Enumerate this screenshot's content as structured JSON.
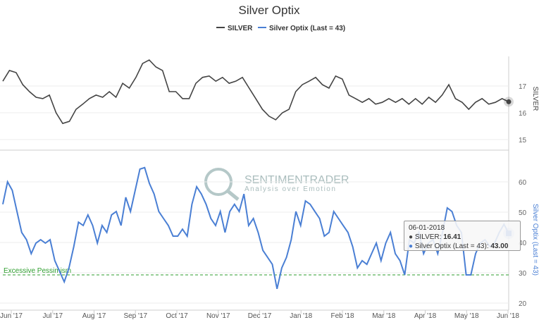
{
  "chart_data": [
    {
      "type": "line",
      "title": "Silver Optix",
      "series": [
        {
          "name": "SILVER",
          "color": "#444444",
          "values": [
            17.18,
            17.58,
            17.5,
            17.05,
            16.79,
            16.58,
            16.53,
            16.66,
            16.0,
            15.6,
            15.68,
            16.13,
            16.32,
            16.53,
            16.66,
            16.58,
            16.79,
            16.58,
            17.1,
            16.92,
            17.32,
            17.84,
            17.97,
            17.71,
            17.58,
            16.79,
            16.79,
            16.53,
            16.53,
            17.1,
            17.32,
            17.37,
            17.18,
            17.32,
            17.1,
            17.18,
            17.32,
            16.92,
            16.53,
            16.13,
            15.87,
            15.74,
            16.0,
            16.13,
            16.79,
            17.05,
            17.18,
            17.32,
            17.05,
            16.92,
            17.37,
            17.26,
            16.66,
            16.53,
            16.39,
            16.53,
            16.32,
            16.39,
            16.53,
            16.39,
            16.53,
            16.32,
            16.53,
            16.32,
            16.58,
            16.39,
            16.66,
            17.05,
            16.53,
            16.39,
            16.13,
            16.39,
            16.53,
            16.32,
            16.39,
            16.53,
            16.41
          ]
        }
      ],
      "ylabel": "SILVER",
      "yticks": [
        15,
        16,
        17
      ],
      "ylim": [
        15,
        18.3
      ]
    },
    {
      "type": "line",
      "series": [
        {
          "name": "Silver Optix (Last = 43)",
          "color": "#4a7fd4",
          "values": [
            52.6,
            60,
            57.2,
            50.2,
            43.3,
            40.9,
            36.3,
            39.8,
            40.9,
            39.8,
            40.9,
            34,
            30.5,
            27,
            31.6,
            38.6,
            46.7,
            45.6,
            49.1,
            45.6,
            39.8,
            45.6,
            43.3,
            49.1,
            50.2,
            45.6,
            54.9,
            50.2,
            57.2,
            64.2,
            64.7,
            59.5,
            56,
            50.2,
            47.9,
            45.6,
            42.1,
            42.1,
            44.4,
            42.1,
            52.6,
            58.4,
            56,
            52.6,
            47.9,
            45.6,
            50.2,
            43.3,
            50.2,
            52.6,
            50.2,
            56,
            45.6,
            47.9,
            43.3,
            37.4,
            35.1,
            32.8,
            24.7,
            31.6,
            35.1,
            40.9,
            50.2,
            45.6,
            53.7,
            52.6,
            50.2,
            47.9,
            42.1,
            43.3,
            50.2,
            47.9,
            45.6,
            43.3,
            38.6,
            31.6,
            34,
            32.8,
            36.3,
            39.8,
            34,
            39.8,
            43.3,
            36.3,
            34,
            29.3,
            40.9,
            39.8,
            43.3,
            36.3,
            39.8,
            40.9,
            36.3,
            43.3,
            51.4,
            50.2,
            45.6,
            43.3,
            29.3,
            29.3,
            36.3,
            39.8,
            40.9,
            38.6,
            39.8,
            43.3,
            46,
            43
          ]
        }
      ],
      "ylabel": "Silver Optix (Last = 43)",
      "yticks": [
        20,
        30,
        40,
        50,
        60
      ],
      "ylim": [
        17,
        68
      ],
      "reference_line": {
        "value": 29,
        "label": "Excessive Pessimism",
        "color": "#2e9e2e"
      }
    }
  ],
  "xticks": [
    "Jun '17",
    "Jul '17",
    "Aug '17",
    "Sep '17",
    "Oct '17",
    "Nov '17",
    "Dec '17",
    "Jan '18",
    "Feb '18",
    "Mar '18",
    "Apr '18",
    "May '18",
    "Jun '18"
  ],
  "legend": [
    "SILVER",
    "Silver Optix (Last = 43)"
  ],
  "watermark": {
    "brand": "SENTIMENTRADER",
    "tagline": "Analysis over Emotion"
  },
  "tooltip": {
    "date": "06-01-2018",
    "silver_label": "SILVER:",
    "silver_value": "16.41",
    "optix_label": "Silver Optix (Last = 43):",
    "optix_value": "43.00"
  }
}
